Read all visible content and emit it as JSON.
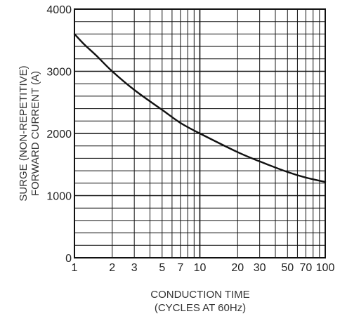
{
  "chart_data": {
    "type": "line",
    "title": "",
    "xlabel_lines": [
      "CONDUCTION TIME",
      "(CYCLES AT 60Hz)"
    ],
    "ylabel_lines": [
      "SURGE (NON-REPETITIVE)",
      "FORWARD CURRENT (A)"
    ],
    "x_scale": "log",
    "xlim": [
      1,
      100
    ],
    "ylim": [
      0,
      4000
    ],
    "grid": true,
    "x_ticks": [
      1,
      2,
      3,
      5,
      7,
      10,
      20,
      30,
      50,
      70,
      100
    ],
    "x_tick_labels": [
      "1",
      "2",
      "3",
      "5",
      "7",
      "10",
      "20",
      "30",
      "50",
      "70",
      "100"
    ],
    "x_gridlines": [
      1,
      2,
      3,
      4,
      5,
      6,
      7,
      8,
      9,
      10,
      20,
      30,
      40,
      50,
      60,
      70,
      80,
      90,
      100
    ],
    "y_ticks": [
      0,
      1000,
      2000,
      3000,
      4000
    ],
    "y_tick_labels": [
      "0",
      "1000",
      "2000",
      "3000",
      "4000"
    ],
    "y_grid_step": 200,
    "series": [
      {
        "color": "#111111",
        "x": [
          1,
          1.2,
          1.5,
          2,
          3,
          5,
          7,
          10,
          20,
          30,
          50,
          70,
          100
        ],
        "y": [
          3600,
          3430,
          3250,
          3000,
          2700,
          2380,
          2170,
          2000,
          1700,
          1550,
          1380,
          1290,
          1220
        ]
      }
    ]
  }
}
